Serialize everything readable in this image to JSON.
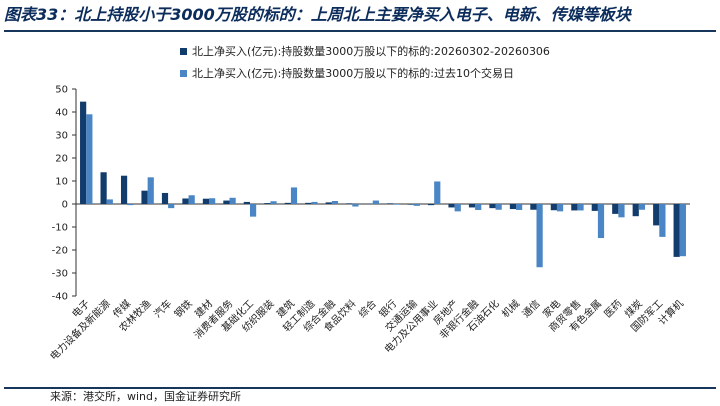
{
  "title": "图表33：北上持股小于3000万股的标的：上周北上主要净买入电子、电新、传媒等板块",
  "source": "来源：港交所，wind，国金证券研究所",
  "colors": {
    "series1": "#123c6b",
    "series2": "#4a86c5",
    "rule": "#16365c",
    "title": "#0c2d5c"
  },
  "chart_data": {
    "type": "bar",
    "legend_position": "top-left",
    "grid": false,
    "ylim": [
      -40,
      50
    ],
    "yticks": [
      50,
      40,
      30,
      20,
      10,
      0,
      -10,
      -20,
      -30,
      -40
    ],
    "categories": [
      "电子",
      "电力设备及新能源",
      "传媒",
      "农林牧渔",
      "汽车",
      "钢铁",
      "建材",
      "消费者服务",
      "基础化工",
      "纺织服装",
      "建筑",
      "轻工制造",
      "综合金融",
      "食品饮料",
      "综合",
      "银行",
      "交通运输",
      "电力及公用事业",
      "房地产",
      "非银行金融",
      "石油石化",
      "机械",
      "通信",
      "家电",
      "商贸零售",
      "有色金属",
      "医药",
      "煤炭",
      "国防军工",
      "计算机"
    ],
    "series": [
      {
        "name": "北上净买入(亿元):持股数量3000万股以下的标的:20260302-20260306",
        "values": [
          44.5,
          13.8,
          12.3,
          5.8,
          4.8,
          2.4,
          2.3,
          1.5,
          0.9,
          0.4,
          0.5,
          0.5,
          0.7,
          0.3,
          0.2,
          0.3,
          -0.3,
          -0.5,
          -1.5,
          -1.5,
          -1.8,
          -2.2,
          -2.5,
          -2.7,
          -2.8,
          -3.0,
          -4.3,
          -5.3,
          -9.3,
          -23.0
        ]
      },
      {
        "name": "北上净买入(亿元):持股数量3000万股以下的标的:过去10个交易日",
        "values": [
          39.0,
          2.0,
          -0.5,
          11.6,
          -1.8,
          3.8,
          2.5,
          2.7,
          -5.5,
          1.2,
          7.2,
          0.9,
          1.3,
          -1.1,
          1.5,
          -0.3,
          -0.8,
          9.8,
          -3.2,
          -2.6,
          -2.5,
          -2.6,
          -27.5,
          -3.2,
          -2.8,
          -14.8,
          -5.8,
          -2.5,
          -14.3,
          -22.7
        ]
      }
    ]
  }
}
